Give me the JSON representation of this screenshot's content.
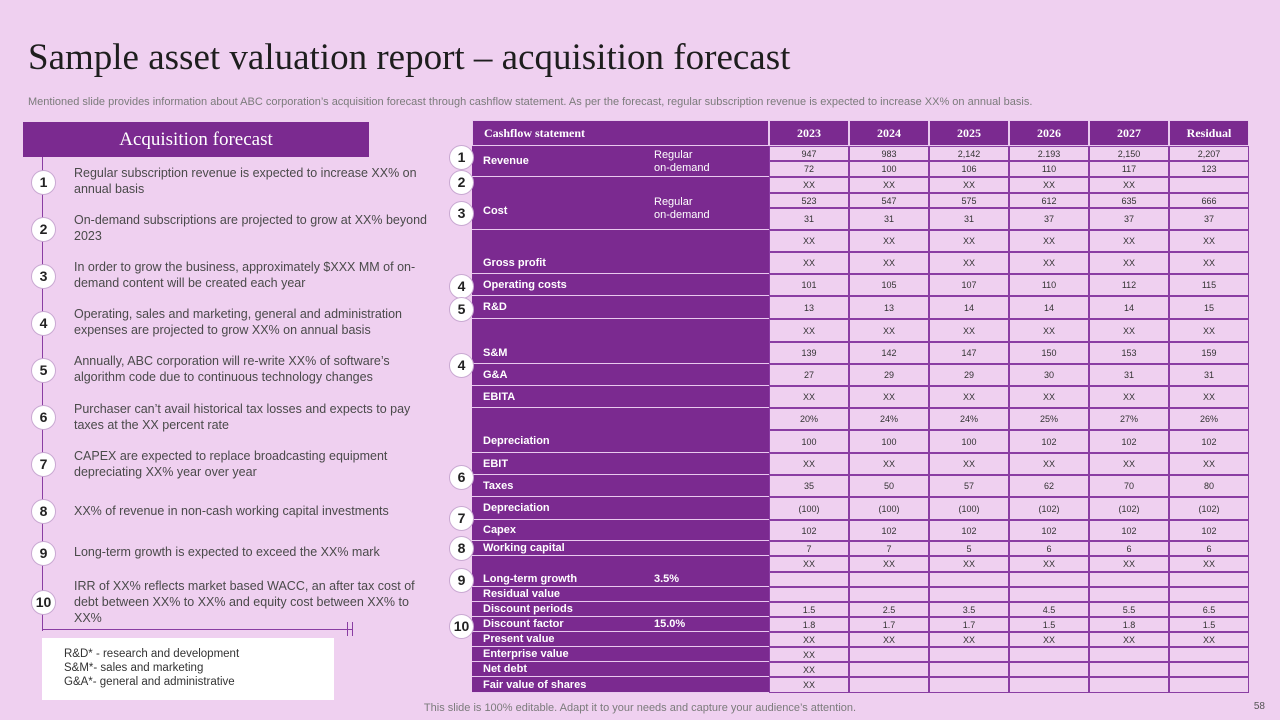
{
  "title": "Sample asset valuation report – acquisition forecast",
  "subtitle": "Mentioned slide provides information about ABC corporation’s acquisition forecast through cashflow statement. As per the forecast, regular subscription revenue is expected to increase XX% on annual basis.",
  "forecast": {
    "header": "Acquisition forecast",
    "items": [
      {
        "num": "1",
        "text": "Regular subscription revenue is expected to increase XX% on annual basis"
      },
      {
        "num": "2",
        "text": "On-demand subscriptions are projected to grow at XX% beyond 2023"
      },
      {
        "num": "3",
        "text": "In order to grow the business, approximately $XXX MM of on-demand content will be created each year"
      },
      {
        "num": "4",
        "text": "Operating, sales and marketing, general and administration expenses are projected to grow XX% on annual basis"
      },
      {
        "num": "5",
        "text": "Annually, ABC corporation will re-write XX% of software’s algorithm code due to continuous technology changes"
      },
      {
        "num": "6",
        "text": "Purchaser can’t avail historical tax losses and expects to pay taxes at the XX percent rate"
      },
      {
        "num": "7",
        "text": "CAPEX are expected to replace broadcasting equipment depreciating XX% year over year"
      },
      {
        "num": "8",
        "text": "XX% of revenue in non-cash working capital investments"
      },
      {
        "num": "9",
        "text": "Long-term growth is expected to exceed the XX% mark"
      },
      {
        "num": "10",
        "text": "IRR of XX% reflects market based WACC, an after tax cost of debt between XX% to XX% and equity cost between XX% to XX%"
      }
    ]
  },
  "notes": [
    "R&D* - research and development",
    "S&M*- sales and marketing",
    "G&A*- general and administrative"
  ],
  "table": {
    "headers": [
      "Cashflow statement",
      "2023",
      "2024",
      "2025",
      "2026",
      "2027",
      "Residual"
    ],
    "rows": [
      {
        "label": "Revenue",
        "sub": "Regular\non-demand",
        "values": [
          "947",
          "983",
          "2,142",
          "2.193",
          "2,150",
          "2,207"
        ]
      },
      {
        "label": "",
        "values": [
          "72",
          "100",
          "106",
          "110",
          "117",
          "123"
        ]
      },
      {
        "label": "",
        "values": [
          "XX",
          "XX",
          "XX",
          "XX",
          "XX",
          ""
        ]
      },
      {
        "label": "Cost",
        "sub": "Regular\non-demand",
        "values": [
          "523",
          "547",
          "575",
          "612",
          "635",
          "666"
        ]
      },
      {
        "label": "",
        "values": [
          "31",
          "31",
          "31",
          "37",
          "37",
          "37"
        ]
      },
      {
        "label": "",
        "values": [
          "XX",
          "XX",
          "XX",
          "XX",
          "XX",
          "XX"
        ]
      },
      {
        "label": "Gross profit",
        "values": [
          "XX",
          "XX",
          "XX",
          "XX",
          "XX",
          "XX"
        ]
      },
      {
        "label": "Operating costs",
        "values": [
          "101",
          "105",
          "107",
          "110",
          "112",
          "115"
        ]
      },
      {
        "label": "R&D",
        "values": [
          "13",
          "13",
          "14",
          "14",
          "14",
          "15"
        ]
      },
      {
        "label": "",
        "values": [
          "XX",
          "XX",
          "XX",
          "XX",
          "XX",
          "XX"
        ]
      },
      {
        "label": "S&M",
        "values": [
          "139",
          "142",
          "147",
          "150",
          "153",
          "159"
        ]
      },
      {
        "label": "G&A",
        "values": [
          "27",
          "29",
          "29",
          "30",
          "31",
          "31"
        ]
      },
      {
        "label": "EBITA",
        "values": [
          "XX",
          "XX",
          "XX",
          "XX",
          "XX",
          "XX"
        ]
      },
      {
        "label": "",
        "values": [
          "20%",
          "24%",
          "24%",
          "25%",
          "27%",
          "26%"
        ]
      },
      {
        "label": "Depreciation",
        "values": [
          "100",
          "100",
          "100",
          "102",
          "102",
          "102"
        ]
      },
      {
        "label": "EBIT",
        "values": [
          "XX",
          "XX",
          "XX",
          "XX",
          "XX",
          "XX"
        ]
      },
      {
        "label": "Taxes",
        "values": [
          "35",
          "50",
          "57",
          "62",
          "70",
          "80"
        ]
      },
      {
        "label": "Depreciation",
        "values": [
          "(100)",
          "(100)",
          "(100)",
          "(102)",
          "(102)",
          "(102)"
        ]
      },
      {
        "label": "Capex",
        "values": [
          "102",
          "102",
          "102",
          "102",
          "102",
          "102"
        ]
      },
      {
        "label": "Working capital",
        "values": [
          "7",
          "7",
          "5",
          "6",
          "6",
          "6"
        ]
      },
      {
        "label": "",
        "values": [
          "XX",
          "XX",
          "XX",
          "XX",
          "XX",
          "XX"
        ]
      },
      {
        "label": "Long-term growth",
        "extra": "3.5%",
        "values": [
          "",
          "",
          "",
          "",
          "",
          ""
        ]
      },
      {
        "label": "Residual value",
        "values": [
          "",
          "",
          "",
          "",
          "",
          ""
        ]
      },
      {
        "label": "Discount periods",
        "values": [
          "1.5",
          "2.5",
          "3.5",
          "4.5",
          "5.5",
          "6.5"
        ]
      },
      {
        "label": "Discount factor",
        "extra": "15.0%",
        "values": [
          "1.8",
          "1.7",
          "1.7",
          "1.5",
          "1.8",
          "1.5"
        ]
      },
      {
        "label": "Present value",
        "values": [
          "XX",
          "XX",
          "XX",
          "XX",
          "XX",
          "XX"
        ]
      },
      {
        "label": "Enterprise value",
        "values": [
          "XX",
          "",
          "",
          "",
          "",
          ""
        ]
      },
      {
        "label": "Net debt",
        "values": [
          "XX",
          "",
          "",
          "",
          "",
          ""
        ]
      },
      {
        "label": "Fair value of shares",
        "values": [
          "XX",
          "",
          "",
          "",
          "",
          ""
        ]
      }
    ],
    "row_markers": [
      "1",
      "2",
      "3",
      "4",
      "5",
      "4",
      "6",
      "7",
      "8",
      "9",
      "10"
    ]
  },
  "footer": "This slide is 100% editable. Adapt it to your needs and capture your audience’s attention.",
  "page_number": "58"
}
